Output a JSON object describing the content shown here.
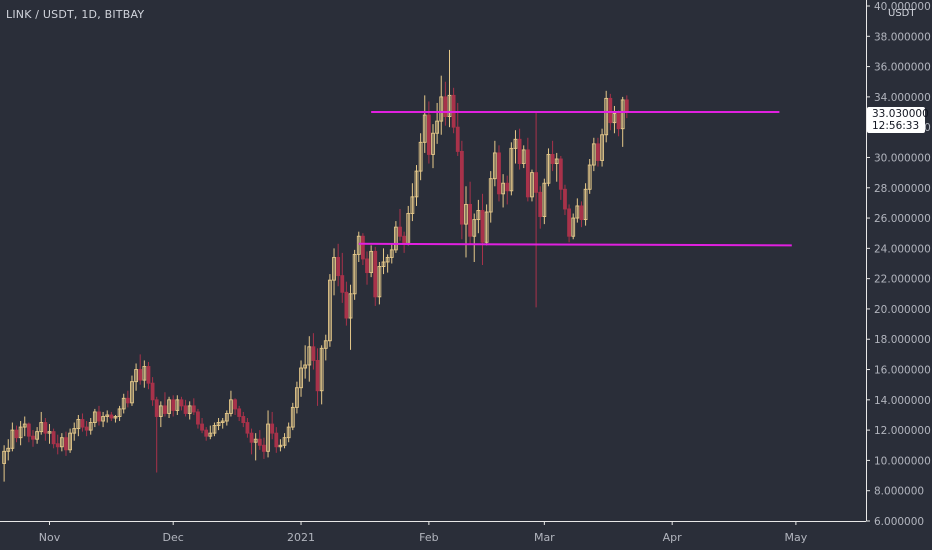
{
  "header": {
    "pair_label": "LINK / USDT, 1D, BITBAY",
    "currency": "USDT"
  },
  "last_price": {
    "value": "33.030000",
    "countdown": "12:56:33"
  },
  "colors": {
    "background": "#2a2e39",
    "up": "#e6c98a",
    "down": "#a8324a",
    "trendline": "#e020e0",
    "axis_text": "#b2b5be",
    "axis_line": "#e8e8e8"
  },
  "chart_data": {
    "type": "candlestick",
    "symbol": "LINK / USDT",
    "interval": "1D",
    "exchange": "BITBAY",
    "ylim": [
      6,
      40
    ],
    "y_ticks": [
      "6.000000",
      "8.000000",
      "10.000000",
      "12.000000",
      "14.000000",
      "16.000000",
      "18.000000",
      "20.000000",
      "22.000000",
      "24.000000",
      "26.000000",
      "28.000000",
      "30.000000",
      "32.000000",
      "34.000000",
      "36.000000",
      "38.000000",
      "40.000000"
    ],
    "x_ticks": [
      "Nov",
      "Dec",
      "2021",
      "Feb",
      "Mar",
      "Apr",
      "May"
    ],
    "x_tick_dates": [
      "2020-11-01",
      "2020-12-01",
      "2021-01-01",
      "2021-02-01",
      "2021-03-01",
      "2021-04-01",
      "2021-05-01"
    ],
    "xlim": [
      "2020-10-20",
      "2021-05-18"
    ],
    "start_date": "2020-10-21",
    "grid": false,
    "candles": [
      [
        9.8,
        11.0,
        8.6,
        10.6
      ],
      [
        10.6,
        11.4,
        10.0,
        10.8
      ],
      [
        10.8,
        12.5,
        10.6,
        12.0
      ],
      [
        12.0,
        12.3,
        11.2,
        11.5
      ],
      [
        11.5,
        12.6,
        11.0,
        12.2
      ],
      [
        12.2,
        12.9,
        11.6,
        12.4
      ],
      [
        12.4,
        12.5,
        11.2,
        11.6
      ],
      [
        11.6,
        12.0,
        10.9,
        11.4
      ],
      [
        11.4,
        12.2,
        11.1,
        11.9
      ],
      [
        11.9,
        13.2,
        11.7,
        12.5
      ],
      [
        12.5,
        12.8,
        11.3,
        11.8
      ],
      [
        11.8,
        12.4,
        11.1,
        11.9
      ],
      [
        11.9,
        12.1,
        10.8,
        11.1
      ],
      [
        11.1,
        11.7,
        10.4,
        10.9
      ],
      [
        10.9,
        11.8,
        10.6,
        11.5
      ],
      [
        11.5,
        11.9,
        10.3,
        10.7
      ],
      [
        10.7,
        12.1,
        10.5,
        11.8
      ],
      [
        11.8,
        12.5,
        11.3,
        12.1
      ],
      [
        12.1,
        13.0,
        11.6,
        12.7
      ],
      [
        12.7,
        13.1,
        11.9,
        12.2
      ],
      [
        12.2,
        12.6,
        11.6,
        12.0
      ],
      [
        12.0,
        12.8,
        11.7,
        12.5
      ],
      [
        12.5,
        13.4,
        12.2,
        13.2
      ],
      [
        13.2,
        13.6,
        12.3,
        12.6
      ],
      [
        12.6,
        13.2,
        12.2,
        12.9
      ],
      [
        12.9,
        13.3,
        12.5,
        13.0
      ],
      [
        13.0,
        13.2,
        12.6,
        12.8
      ],
      [
        12.8,
        13.0,
        12.5,
        12.9
      ],
      [
        12.9,
        13.6,
        12.6,
        13.4
      ],
      [
        13.4,
        14.4,
        13.1,
        14.1
      ],
      [
        14.1,
        14.6,
        13.5,
        13.8
      ],
      [
        13.8,
        15.6,
        13.6,
        15.2
      ],
      [
        15.2,
        16.4,
        14.6,
        16.0
      ],
      [
        16.0,
        17.0,
        15.0,
        15.3
      ],
      [
        15.3,
        16.6,
        14.8,
        16.2
      ],
      [
        16.2,
        16.5,
        14.7,
        15.1
      ],
      [
        15.1,
        15.5,
        13.6,
        14.0
      ],
      [
        14.0,
        14.2,
        9.2,
        12.9
      ],
      [
        12.9,
        13.9,
        12.2,
        13.6
      ],
      [
        13.6,
        14.5,
        12.9,
        13.1
      ],
      [
        13.1,
        14.2,
        12.8,
        14.0
      ],
      [
        14.0,
        14.3,
        12.9,
        13.3
      ],
      [
        13.3,
        14.3,
        13.0,
        14.0
      ],
      [
        14.0,
        14.2,
        13.3,
        13.6
      ],
      [
        13.6,
        14.0,
        12.9,
        13.1
      ],
      [
        13.1,
        13.9,
        12.7,
        13.6
      ],
      [
        13.6,
        14.1,
        13.0,
        13.2
      ],
      [
        13.2,
        13.4,
        12.1,
        12.4
      ],
      [
        12.4,
        12.8,
        11.8,
        12.0
      ],
      [
        12.0,
        12.2,
        11.3,
        11.6
      ],
      [
        11.6,
        12.3,
        11.4,
        11.8
      ],
      [
        11.8,
        12.5,
        11.6,
        12.3
      ],
      [
        12.3,
        12.8,
        12.0,
        12.5
      ],
      [
        12.5,
        12.8,
        12.1,
        12.6
      ],
      [
        12.6,
        13.3,
        12.3,
        13.1
      ],
      [
        13.1,
        14.6,
        12.9,
        14.0
      ],
      [
        14.0,
        14.1,
        13.0,
        13.4
      ],
      [
        13.4,
        13.6,
        12.6,
        12.9
      ],
      [
        12.9,
        13.2,
        12.2,
        12.5
      ],
      [
        12.5,
        12.8,
        11.5,
        11.8
      ],
      [
        11.8,
        12.1,
        10.4,
        11.2
      ],
      [
        11.2,
        11.8,
        10.0,
        11.4
      ],
      [
        11.4,
        12.0,
        10.7,
        11.0
      ],
      [
        11.0,
        11.5,
        10.1,
        10.6
      ],
      [
        10.6,
        13.3,
        10.2,
        12.4
      ],
      [
        12.4,
        13.2,
        11.4,
        11.8
      ],
      [
        11.8,
        12.2,
        10.5,
        10.9
      ],
      [
        10.9,
        11.4,
        10.6,
        11.0
      ],
      [
        11.0,
        11.8,
        10.8,
        11.5
      ],
      [
        11.5,
        12.5,
        11.2,
        12.2
      ],
      [
        12.2,
        13.8,
        12.0,
        13.5
      ],
      [
        13.5,
        15.2,
        13.1,
        14.8
      ],
      [
        14.8,
        16.6,
        14.2,
        16.1
      ],
      [
        16.1,
        17.6,
        15.4,
        16.3
      ],
      [
        16.3,
        18.2,
        15.2,
        17.5
      ],
      [
        17.5,
        18.4,
        16.0,
        16.6
      ],
      [
        16.6,
        17.4,
        13.6,
        14.6
      ],
      [
        14.6,
        17.6,
        13.7,
        17.4
      ],
      [
        17.4,
        18.3,
        16.6,
        17.9
      ],
      [
        17.9,
        22.3,
        17.5,
        21.9
      ],
      [
        21.9,
        24.0,
        20.9,
        23.4
      ],
      [
        23.4,
        24.3,
        21.5,
        22.2
      ],
      [
        22.2,
        23.7,
        20.4,
        21.1
      ],
      [
        21.1,
        21.8,
        18.9,
        19.4
      ],
      [
        19.4,
        21.6,
        17.3,
        21.0
      ],
      [
        21.0,
        23.9,
        20.6,
        23.6
      ],
      [
        23.6,
        25.1,
        23.1,
        24.8
      ],
      [
        24.8,
        25.0,
        22.9,
        23.3
      ],
      [
        23.3,
        23.8,
        21.6,
        22.4
      ],
      [
        22.4,
        24.2,
        22.1,
        23.8
      ],
      [
        23.8,
        24.1,
        20.2,
        20.8
      ],
      [
        20.8,
        23.1,
        20.3,
        22.8
      ],
      [
        22.8,
        24.0,
        22.3,
        23.1
      ],
      [
        23.1,
        23.6,
        22.4,
        23.4
      ],
      [
        23.4,
        24.3,
        23.0,
        23.9
      ],
      [
        23.9,
        25.8,
        23.7,
        25.4
      ],
      [
        25.4,
        26.6,
        24.5,
        24.8
      ],
      [
        24.8,
        25.1,
        23.7,
        24.3
      ],
      [
        24.3,
        26.8,
        24.2,
        26.3
      ],
      [
        26.3,
        28.3,
        25.8,
        27.4
      ],
      [
        27.4,
        29.5,
        26.8,
        29.1
      ],
      [
        29.1,
        31.6,
        28.5,
        31.0
      ],
      [
        31.0,
        34.1,
        30.3,
        32.8
      ],
      [
        32.8,
        33.7,
        29.6,
        30.2
      ],
      [
        30.2,
        32.2,
        29.3,
        31.6
      ],
      [
        31.6,
        33.6,
        30.9,
        32.4
      ],
      [
        32.4,
        35.4,
        31.5,
        34.0
      ],
      [
        34.0,
        35.0,
        32.1,
        32.7
      ],
      [
        32.7,
        37.1,
        32.0,
        34.1
      ],
      [
        34.1,
        34.6,
        31.6,
        32.0
      ],
      [
        32.0,
        33.6,
        30.1,
        30.4
      ],
      [
        30.4,
        31.1,
        24.6,
        25.6
      ],
      [
        25.6,
        28.1,
        23.4,
        26.9
      ],
      [
        26.9,
        28.4,
        24.3,
        24.8
      ],
      [
        24.8,
        26.3,
        23.1,
        25.9
      ],
      [
        25.9,
        27.2,
        25.0,
        26.5
      ],
      [
        26.5,
        27.6,
        22.9,
        24.4
      ],
      [
        24.4,
        26.9,
        24.2,
        26.4
      ],
      [
        26.4,
        29.1,
        25.7,
        28.6
      ],
      [
        28.6,
        31.1,
        28.1,
        30.3
      ],
      [
        30.3,
        30.8,
        27.1,
        27.6
      ],
      [
        27.6,
        28.9,
        26.7,
        28.3
      ],
      [
        28.3,
        28.8,
        26.9,
        27.8
      ],
      [
        27.8,
        31.0,
        27.5,
        30.6
      ],
      [
        30.6,
        31.8,
        29.6,
        31.2
      ],
      [
        31.2,
        31.9,
        29.2,
        29.6
      ],
      [
        29.6,
        30.8,
        29.3,
        30.5
      ],
      [
        30.5,
        31.3,
        27.1,
        27.4
      ],
      [
        27.4,
        29.2,
        27.1,
        29.0
      ],
      [
        29.0,
        33.0,
        20.1,
        27.7
      ],
      [
        27.7,
        28.1,
        25.3,
        26.1
      ],
      [
        26.1,
        28.6,
        25.6,
        28.3
      ],
      [
        28.3,
        30.6,
        28.1,
        30.2
      ],
      [
        30.2,
        31.1,
        29.1,
        29.6
      ],
      [
        29.6,
        30.3,
        28.4,
        29.9
      ],
      [
        29.9,
        30.1,
        27.2,
        27.9
      ],
      [
        27.9,
        28.2,
        26.2,
        26.6
      ],
      [
        26.6,
        26.9,
        24.4,
        24.8
      ],
      [
        24.8,
        26.3,
        24.6,
        26.0
      ],
      [
        26.0,
        27.3,
        25.7,
        26.8
      ],
      [
        26.8,
        27.1,
        25.4,
        25.9
      ],
      [
        25.9,
        28.3,
        25.5,
        27.9
      ],
      [
        27.9,
        29.9,
        27.6,
        29.5
      ],
      [
        29.5,
        31.3,
        29.1,
        30.9
      ],
      [
        30.9,
        31.3,
        29.4,
        29.8
      ],
      [
        29.8,
        31.9,
        29.4,
        31.5
      ],
      [
        31.5,
        34.4,
        31.0,
        33.9
      ],
      [
        33.9,
        34.2,
        31.8,
        32.3
      ],
      [
        32.3,
        33.4,
        31.6,
        32.9
      ],
      [
        32.9,
        33.1,
        31.4,
        31.9
      ],
      [
        31.9,
        34.0,
        30.7,
        33.8
      ],
      [
        33.8,
        34.1,
        32.6,
        33.0
      ]
    ],
    "trendlines": [
      {
        "from": [
          "2021-01-18",
          33.0
        ],
        "to": [
          "2021-04-27",
          33.0
        ]
      },
      {
        "from": [
          "2021-01-15",
          24.3
        ],
        "to": [
          "2021-04-30",
          24.2
        ]
      }
    ]
  }
}
